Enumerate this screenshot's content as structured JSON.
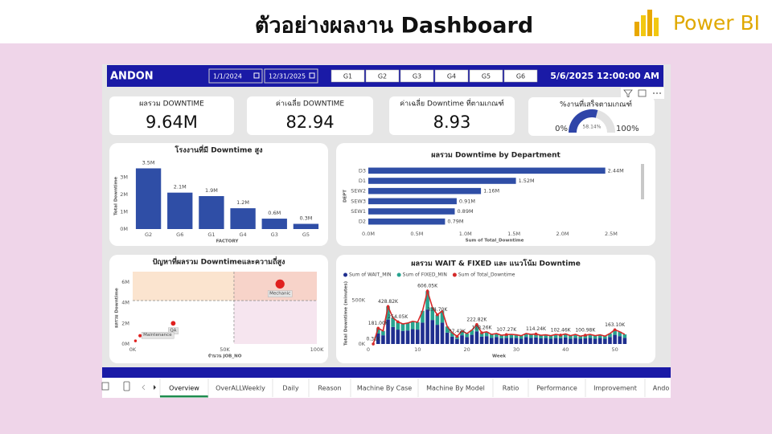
{
  "header": {
    "title": "ตัวอย่างผลงาน Dashboard",
    "brand": "Power BI"
  },
  "toolbar": {
    "title": "ANDON",
    "start_date": "1/1/2024",
    "end_date": "12/31/2025",
    "groups": [
      "G1",
      "G2",
      "G3",
      "G4",
      "G5",
      "G6"
    ],
    "datetime": "5/6/2025 12:00:00 AM"
  },
  "kpis": [
    {
      "label": "ผลรวม DOWNTIME",
      "value": "9.64M"
    },
    {
      "label": "ค่าเฉลี่ย DOWNTIME",
      "value": "82.94"
    },
    {
      "label": "ค่าเฉลี่ย Downtime ที่ตามเกณฑ์",
      "value": "8.93"
    }
  ],
  "gauge": {
    "title": "%งานที่เสร็จตามเกณฑ์",
    "value": 58.14,
    "value_label": "58.14%",
    "min": {
      "value": 0,
      "label": "0%"
    },
    "max": {
      "value": 100,
      "label": "100%"
    },
    "color": "#2f45a8"
  },
  "chart_data": [
    {
      "type": "bar",
      "title": "โรงงานที่มี Downtime สูง",
      "x_label": "FACTORY",
      "y_label": "Total Downtime",
      "categories": [
        "G2",
        "G6",
        "G1",
        "G4",
        "G3",
        "G5"
      ],
      "values": [
        3500000,
        2100000,
        1900000,
        1200000,
        600000,
        300000
      ],
      "value_labels": [
        "3.5M",
        "2.1M",
        "1.9M",
        "1.2M",
        "0.6M",
        "0.3M"
      ],
      "color": "#2f4ea6",
      "ylim": [
        0,
        3800000
      ],
      "yticks": [
        {
          "value": 0,
          "label": "0M"
        },
        {
          "value": 1000000,
          "label": "1M"
        },
        {
          "value": 2000000,
          "label": "2M"
        },
        {
          "value": 3000000,
          "label": "3M"
        }
      ]
    },
    {
      "type": "barh",
      "title": "ผลรวม Downtime by Department",
      "x_label": "Sum of Total_Downtime",
      "y_label": "DEPT",
      "categories": [
        "D3",
        "D1",
        "SEW2",
        "SEW3",
        "SEW1",
        "D2"
      ],
      "values": [
        2440000,
        1520000,
        1160000,
        910000,
        890000,
        790000
      ],
      "value_labels": [
        "2.44M",
        "1.52M",
        "1.16M",
        "0.91M",
        "0.89M",
        "0.79M"
      ],
      "color": "#2f4ea6",
      "xlim": [
        0,
        2600000
      ],
      "xticks": [
        {
          "value": 0,
          "label": "0.0M"
        },
        {
          "value": 500000,
          "label": "0.5M"
        },
        {
          "value": 1000000,
          "label": "1.0M"
        },
        {
          "value": 1500000,
          "label": "1.5M"
        },
        {
          "value": 2000000,
          "label": "2.0M"
        },
        {
          "value": 2500000,
          "label": "2.5M"
        }
      ]
    },
    {
      "type": "scatter",
      "title": "ปัญหาที่ผลรวม Downtimeและความถี่สูง",
      "x_label": "จำนวน JOB_NO",
      "y_label": "ผลรวม Downtime",
      "point_labels": [
        "Mechanic",
        "QA",
        "Maintenance",
        null
      ],
      "x": [
        80000,
        22000,
        4000,
        1500
      ],
      "y": [
        5800000,
        2000000,
        800000,
        300000
      ],
      "color": "#e0201e",
      "x_ref": 55000,
      "y_ref": 4200000,
      "xlim": [
        0,
        100000
      ],
      "ylim": [
        0,
        7000000
      ],
      "xticks": [
        {
          "value": 0,
          "label": "0K"
        },
        {
          "value": 50000,
          "label": "50K"
        },
        {
          "value": 100000,
          "label": "100K"
        }
      ],
      "yticks": [
        {
          "value": 0,
          "label": "0M"
        },
        {
          "value": 2000000,
          "label": "2M"
        },
        {
          "value": 4000000,
          "label": "4M"
        },
        {
          "value": 6000000,
          "label": "6M"
        }
      ]
    },
    {
      "type": "combo",
      "title": "ผลรวม WAIT & FIXED และ แนวโน้ม Downtime",
      "x_label": "Week",
      "y_label": "Total Downtime (minutes)",
      "x": [
        1,
        2,
        3,
        4,
        5,
        6,
        7,
        8,
        9,
        10,
        11,
        12,
        13,
        14,
        15,
        16,
        17,
        18,
        19,
        20,
        21,
        22,
        23,
        24,
        25,
        26,
        27,
        28,
        29,
        30,
        31,
        32,
        33,
        34,
        35,
        36,
        37,
        38,
        39,
        40,
        41,
        42,
        43,
        44,
        45,
        46,
        47,
        48,
        49,
        50,
        51,
        52
      ],
      "series": [
        {
          "name": "Sum of WAIT_MIN",
          "color": "#1f2f8f",
          "kind": "bar",
          "values": [
            200,
            120000,
            100000,
            280000,
            195000,
            165000,
            150000,
            155000,
            170000,
            165000,
            245000,
            395000,
            275000,
            220000,
            245000,
            130000,
            85000,
            57000,
            100000,
            80000,
            105000,
            145000,
            85000,
            90000,
            70000,
            80000,
            65000,
            70000,
            70000,
            70000,
            60000,
            80000,
            70000,
            75000,
            65000,
            70000,
            60000,
            70000,
            65000,
            75000,
            60000,
            70000,
            60000,
            65000,
            70000,
            60000,
            70000,
            60000,
            80000,
            105000,
            90000,
            70000
          ]
        },
        {
          "name": "Sum of FIXED_MIN",
          "color": "#27a38f",
          "kind": "bar",
          "values": [
            100,
            60000,
            50000,
            150000,
            105000,
            90000,
            80000,
            85000,
            90000,
            85000,
            135000,
            210000,
            145000,
            115000,
            135000,
            70000,
            45000,
            30000,
            50000,
            40000,
            55000,
            78000,
            43000,
            50000,
            40000,
            40000,
            35000,
            37000,
            40000,
            35000,
            35000,
            40000,
            40000,
            39000,
            35000,
            35000,
            35000,
            40000,
            37000,
            40000,
            35000,
            40000,
            30000,
            36000,
            40000,
            35000,
            35000,
            30000,
            40000,
            58000,
            50000,
            40000
          ]
        },
        {
          "name": "Sum of Total_Downtime",
          "color": "#d42a2a",
          "kind": "line",
          "values": [
            310,
            181000,
            150000,
            428820,
            300000,
            254050,
            230000,
            240000,
            260000,
            250000,
            380000,
            606050,
            420000,
            334700,
            380000,
            200000,
            130000,
            87420,
            150000,
            120000,
            160000,
            222820,
            128260,
            140000,
            110000,
            120000,
            100000,
            107270,
            110000,
            105000,
            95000,
            120000,
            110000,
            114240,
            100000,
            105000,
            95000,
            110000,
            102460,
            115000,
            95000,
            110000,
            90000,
            100980,
            110000,
            95000,
            105000,
            90000,
            120000,
            163100,
            140000,
            110000
          ],
          "value_labels": [
            "0.31K",
            "181.00K",
            null,
            "428.82K",
            null,
            "254.05K",
            null,
            null,
            null,
            null,
            null,
            "606.05K",
            null,
            "334.70K",
            null,
            null,
            null,
            "87.42K",
            null,
            null,
            null,
            "222.82K",
            "128.26K",
            null,
            null,
            null,
            null,
            "107.27K",
            null,
            null,
            null,
            null,
            null,
            "114.24K",
            null,
            null,
            null,
            null,
            "102.46K",
            null,
            null,
            null,
            null,
            "100.98K",
            null,
            null,
            null,
            null,
            null,
            "163.10K",
            null,
            null
          ]
        }
      ],
      "xlim": [
        0,
        53
      ],
      "xticks": [
        0,
        10,
        20,
        30,
        40,
        50
      ],
      "ylim": [
        0,
        700000
      ],
      "yticks": [
        {
          "value": 0,
          "label": "0K"
        },
        {
          "value": 500000,
          "label": "500K"
        }
      ]
    }
  ],
  "tabs": [
    "Overview",
    "OverALLWeekly",
    "Daily",
    "Reason",
    "Machine By Case",
    "Machine By Model",
    "Ratio",
    "Performance",
    "Improvement",
    "Ando"
  ],
  "active_tab": 0
}
